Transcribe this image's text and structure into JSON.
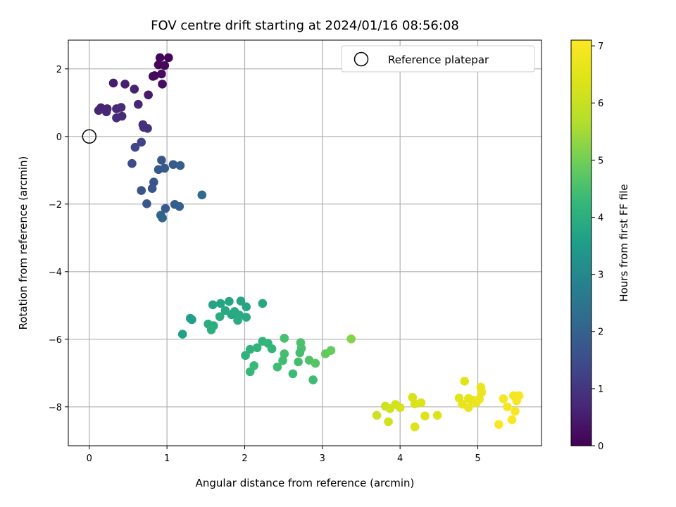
{
  "chart_data": {
    "type": "scatter",
    "title": "FOV centre drift starting at 2024/01/16 08:56:08",
    "xlabel": "Angular distance from reference (arcmin)",
    "ylabel": "Rotation from reference (arcmin)",
    "xlim": [
      -0.27,
      5.82
    ],
    "ylim": [
      -9.15,
      2.85
    ],
    "xticks": [
      0,
      1,
      2,
      3,
      4,
      5
    ],
    "yticks": [
      -8,
      -6,
      -4,
      -2,
      0,
      2
    ],
    "grid": true,
    "legend": {
      "placement": "top-right",
      "label": "Reference platepar"
    },
    "reference_point": {
      "x": 0,
      "y": 0
    },
    "colorbar": {
      "label": "Hours from first FF file",
      "min": 0,
      "max": 7.1,
      "ticks": [
        0,
        1,
        2,
        3,
        4,
        5,
        6,
        7
      ],
      "colormap": "viridis"
    },
    "series": [
      {
        "points": [
          {
            "x": 0.91,
            "y": 2.33,
            "c": 0.05
          },
          {
            "x": 1.02,
            "y": 2.33,
            "c": 0.08
          },
          {
            "x": 0.89,
            "y": 2.12,
            "c": 0.1
          },
          {
            "x": 0.97,
            "y": 2.1,
            "c": 0.12
          },
          {
            "x": 0.84,
            "y": 1.8,
            "c": 0.15
          },
          {
            "x": 0.93,
            "y": 1.85,
            "c": 0.18
          },
          {
            "x": 0.82,
            "y": 1.78,
            "c": 0.2
          },
          {
            "x": 0.94,
            "y": 1.55,
            "c": 0.25
          },
          {
            "x": 0.76,
            "y": 1.23,
            "c": 0.45
          },
          {
            "x": 0.31,
            "y": 1.58,
            "c": 0.5
          },
          {
            "x": 0.46,
            "y": 1.55,
            "c": 0.55
          },
          {
            "x": 0.58,
            "y": 1.4,
            "c": 0.6
          },
          {
            "x": 0.63,
            "y": 0.95,
            "c": 0.7
          },
          {
            "x": 0.15,
            "y": 0.85,
            "c": 0.62
          },
          {
            "x": 0.23,
            "y": 0.82,
            "c": 0.65
          },
          {
            "x": 0.12,
            "y": 0.77,
            "c": 0.68
          },
          {
            "x": 0.22,
            "y": 0.73,
            "c": 0.7
          },
          {
            "x": 0.35,
            "y": 0.82,
            "c": 0.72
          },
          {
            "x": 0.41,
            "y": 0.86,
            "c": 0.75
          },
          {
            "x": 0.42,
            "y": 0.6,
            "c": 0.78
          },
          {
            "x": 0.35,
            "y": 0.55,
            "c": 0.8
          },
          {
            "x": 0.69,
            "y": 0.35,
            "c": 0.85
          },
          {
            "x": 0.7,
            "y": 0.27,
            "c": 0.88
          },
          {
            "x": 0.75,
            "y": 0.24,
            "c": 0.9
          },
          {
            "x": 0.67,
            "y": -0.17,
            "c": 1.3
          },
          {
            "x": 0.59,
            "y": -0.32,
            "c": 1.35
          },
          {
            "x": 0.55,
            "y": -0.8,
            "c": 1.45
          },
          {
            "x": 0.93,
            "y": -0.7,
            "c": 1.7
          },
          {
            "x": 0.89,
            "y": -0.98,
            "c": 1.75
          },
          {
            "x": 0.97,
            "y": -0.94,
            "c": 1.78
          },
          {
            "x": 1.08,
            "y": -0.83,
            "c": 1.82
          },
          {
            "x": 1.17,
            "y": -0.86,
            "c": 1.86
          },
          {
            "x": 0.83,
            "y": -1.35,
            "c": 1.65
          },
          {
            "x": 0.81,
            "y": -1.54,
            "c": 1.68
          },
          {
            "x": 0.67,
            "y": -1.6,
            "c": 1.6
          },
          {
            "x": 0.74,
            "y": -1.99,
            "c": 1.72
          },
          {
            "x": 0.98,
            "y": -2.13,
            "c": 1.8
          },
          {
            "x": 1.1,
            "y": -2.01,
            "c": 1.9
          },
          {
            "x": 1.16,
            "y": -2.07,
            "c": 1.95
          },
          {
            "x": 0.92,
            "y": -2.33,
            "c": 1.98
          },
          {
            "x": 0.94,
            "y": -2.41,
            "c": 2.0
          },
          {
            "x": 1.45,
            "y": -1.73,
            "c": 2.2
          },
          {
            "x": 1.59,
            "y": -4.98,
            "c": 3.7
          },
          {
            "x": 1.69,
            "y": -4.94,
            "c": 3.72
          },
          {
            "x": 1.8,
            "y": -4.88,
            "c": 3.74
          },
          {
            "x": 1.95,
            "y": -4.87,
            "c": 3.76
          },
          {
            "x": 2.02,
            "y": -5.04,
            "c": 3.78
          },
          {
            "x": 2.23,
            "y": -4.94,
            "c": 3.8
          },
          {
            "x": 1.75,
            "y": -5.15,
            "c": 3.82
          },
          {
            "x": 1.83,
            "y": -5.27,
            "c": 3.84
          },
          {
            "x": 1.87,
            "y": -5.18,
            "c": 3.86
          },
          {
            "x": 1.93,
            "y": -5.28,
            "c": 3.88
          },
          {
            "x": 2.02,
            "y": -5.35,
            "c": 3.9
          },
          {
            "x": 1.91,
            "y": -5.44,
            "c": 3.92
          },
          {
            "x": 1.68,
            "y": -5.33,
            "c": 3.94
          },
          {
            "x": 1.53,
            "y": -5.55,
            "c": 3.96
          },
          {
            "x": 1.6,
            "y": -5.6,
            "c": 3.98
          },
          {
            "x": 1.57,
            "y": -5.72,
            "c": 4.0
          },
          {
            "x": 1.3,
            "y": -5.38,
            "c": 3.6
          },
          {
            "x": 1.32,
            "y": -5.42,
            "c": 3.62
          },
          {
            "x": 1.2,
            "y": -5.85,
            "c": 3.64
          },
          {
            "x": 2.01,
            "y": -6.48,
            "c": 4.1
          },
          {
            "x": 2.07,
            "y": -6.3,
            "c": 4.12
          },
          {
            "x": 2.16,
            "y": -6.25,
            "c": 4.14
          },
          {
            "x": 2.23,
            "y": -6.06,
            "c": 4.16
          },
          {
            "x": 2.3,
            "y": -6.12,
            "c": 4.18
          },
          {
            "x": 2.35,
            "y": -6.28,
            "c": 4.2
          },
          {
            "x": 2.51,
            "y": -5.97,
            "c": 4.5
          },
          {
            "x": 2.72,
            "y": -6.1,
            "c": 4.55
          },
          {
            "x": 2.73,
            "y": -6.27,
            "c": 4.52
          },
          {
            "x": 2.71,
            "y": -6.4,
            "c": 4.48
          },
          {
            "x": 2.51,
            "y": -6.43,
            "c": 4.45
          },
          {
            "x": 2.49,
            "y": -6.63,
            "c": 4.42
          },
          {
            "x": 2.42,
            "y": -6.82,
            "c": 4.4
          },
          {
            "x": 2.69,
            "y": -6.67,
            "c": 4.46
          },
          {
            "x": 2.83,
            "y": -6.62,
            "c": 4.6
          },
          {
            "x": 2.91,
            "y": -6.71,
            "c": 4.65
          },
          {
            "x": 3.04,
            "y": -6.43,
            "c": 4.8
          },
          {
            "x": 3.11,
            "y": -6.33,
            "c": 4.85
          },
          {
            "x": 2.12,
            "y": -6.78,
            "c": 4.3
          },
          {
            "x": 2.07,
            "y": -6.96,
            "c": 4.25
          },
          {
            "x": 2.62,
            "y": -7.02,
            "c": 4.35
          },
          {
            "x": 2.88,
            "y": -7.2,
            "c": 4.38
          },
          {
            "x": 3.37,
            "y": -5.99,
            "c": 5.2
          },
          {
            "x": 3.7,
            "y": -8.25,
            "c": 6.1
          },
          {
            "x": 3.81,
            "y": -7.98,
            "c": 6.15
          },
          {
            "x": 3.87,
            "y": -8.05,
            "c": 6.18
          },
          {
            "x": 3.85,
            "y": -8.44,
            "c": 6.2
          },
          {
            "x": 3.94,
            "y": -7.93,
            "c": 6.22
          },
          {
            "x": 4.0,
            "y": -8.02,
            "c": 6.25
          },
          {
            "x": 4.16,
            "y": -7.72,
            "c": 6.3
          },
          {
            "x": 4.19,
            "y": -7.91,
            "c": 6.32
          },
          {
            "x": 4.27,
            "y": -7.88,
            "c": 6.35
          },
          {
            "x": 4.19,
            "y": -8.59,
            "c": 6.38
          },
          {
            "x": 4.32,
            "y": -8.27,
            "c": 6.4
          },
          {
            "x": 4.48,
            "y": -8.25,
            "c": 6.42
          },
          {
            "x": 4.83,
            "y": -7.24,
            "c": 6.5
          },
          {
            "x": 4.76,
            "y": -7.74,
            "c": 6.55
          },
          {
            "x": 4.8,
            "y": -7.92,
            "c": 6.58
          },
          {
            "x": 4.88,
            "y": -7.75,
            "c": 6.6
          },
          {
            "x": 4.93,
            "y": -7.8,
            "c": 6.62
          },
          {
            "x": 4.88,
            "y": -8.02,
            "c": 6.65
          },
          {
            "x": 4.98,
            "y": -7.88,
            "c": 6.68
          },
          {
            "x": 5.04,
            "y": -7.42,
            "c": 6.7
          },
          {
            "x": 5.05,
            "y": -7.57,
            "c": 6.72
          },
          {
            "x": 5.02,
            "y": -7.77,
            "c": 6.75
          },
          {
            "x": 5.33,
            "y": -7.76,
            "c": 6.9
          },
          {
            "x": 5.38,
            "y": -8.0,
            "c": 6.92
          },
          {
            "x": 5.46,
            "y": -7.67,
            "c": 6.94
          },
          {
            "x": 5.53,
            "y": -7.67,
            "c": 6.96
          },
          {
            "x": 5.5,
            "y": -7.82,
            "c": 6.98
          },
          {
            "x": 5.48,
            "y": -8.13,
            "c": 7.0
          },
          {
            "x": 5.27,
            "y": -8.52,
            "c": 7.02
          },
          {
            "x": 5.44,
            "y": -8.38,
            "c": 7.04
          }
        ]
      }
    ]
  }
}
